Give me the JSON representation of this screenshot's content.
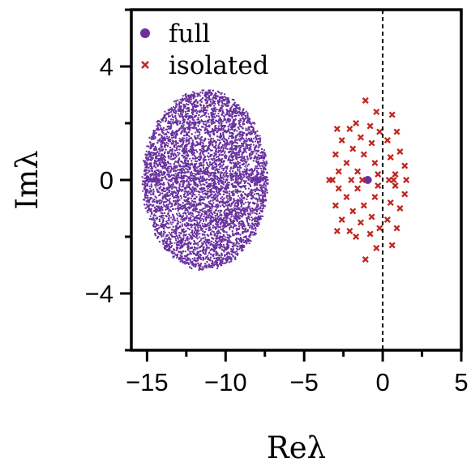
{
  "chart_data": {
    "type": "scatter",
    "title": "",
    "xlabel": "Reλ",
    "ylabel": "Imλ",
    "xlim": [
      -16,
      5
    ],
    "ylim": [
      -6,
      6
    ],
    "xticks": [
      -15,
      -10,
      -5,
      0,
      5
    ],
    "xtick_labels": [
      "−15",
      "−10",
      "−5",
      "0",
      "5"
    ],
    "yticks": [
      -4,
      0,
      4
    ],
    "ytick_labels": [
      "−4",
      "0",
      "4"
    ],
    "grid": false,
    "legend_position": "top-left",
    "reference_line": {
      "x": 0,
      "style": "dashed",
      "color": "#000000"
    },
    "series": [
      {
        "name": "full",
        "marker": "dot",
        "color": "#6a329f",
        "distribution": {
          "shape": "ellipse",
          "center": [
            -11.3,
            0
          ],
          "semi_axis_x": 3.9,
          "semi_axis_y": 3.1,
          "approx_points": 12000
        },
        "extra_points": [
          [
            -14.8,
            0
          ],
          [
            -14.6,
            0
          ],
          [
            -8.2,
            0
          ],
          [
            -8.0,
            0
          ],
          [
            -0.95,
            0
          ]
        ]
      },
      {
        "name": "isolated",
        "marker": "x",
        "color": "#c0271f",
        "points": [
          [
            -1.1,
            2.8
          ],
          [
            -0.4,
            2.4
          ],
          [
            0.6,
            2.3
          ],
          [
            -1.7,
            2.0
          ],
          [
            -0.8,
            1.9
          ],
          [
            -2.9,
            1.8
          ],
          [
            -2.1,
            1.8
          ],
          [
            -0.2,
            1.7
          ],
          [
            -1.4,
            1.5
          ],
          [
            0.9,
            1.7
          ],
          [
            -2.6,
            1.4
          ],
          [
            -0.7,
            1.3
          ],
          [
            0.3,
            1.4
          ],
          [
            -1.9,
            1.1
          ],
          [
            1.1,
            1.0
          ],
          [
            -3.0,
            0.9
          ],
          [
            -1.2,
            0.9
          ],
          [
            0.5,
            0.8
          ],
          [
            -2.3,
            0.6
          ],
          [
            -0.5,
            0.6
          ],
          [
            1.4,
            0.5
          ],
          [
            -2.8,
            0.3
          ],
          [
            -1.6,
            0.3
          ],
          [
            -0.3,
            0.2
          ],
          [
            0.8,
            0.2
          ],
          [
            -3.4,
            0.0
          ],
          [
            -3.2,
            0.0
          ],
          [
            -2.0,
            0.0
          ],
          [
            -1.3,
            0.0
          ],
          [
            0.4,
            0.0
          ],
          [
            0.7,
            0.0
          ],
          [
            1.5,
            0.0
          ],
          [
            -2.8,
            -0.3
          ],
          [
            -1.6,
            -0.3
          ],
          [
            -0.3,
            -0.2
          ],
          [
            0.8,
            -0.2
          ],
          [
            -2.3,
            -0.6
          ],
          [
            -0.5,
            -0.6
          ],
          [
            1.4,
            -0.5
          ],
          [
            -3.0,
            -0.9
          ],
          [
            -1.2,
            -0.9
          ],
          [
            0.5,
            -0.8
          ],
          [
            -1.9,
            -1.1
          ],
          [
            1.1,
            -1.0
          ],
          [
            -2.6,
            -1.4
          ],
          [
            -0.7,
            -1.3
          ],
          [
            0.3,
            -1.4
          ],
          [
            -1.4,
            -1.5
          ],
          [
            0.9,
            -1.7
          ],
          [
            -2.9,
            -1.8
          ],
          [
            -2.1,
            -1.8
          ],
          [
            -0.2,
            -1.7
          ],
          [
            -1.7,
            -2.0
          ],
          [
            -0.8,
            -1.9
          ],
          [
            -0.4,
            -2.4
          ],
          [
            0.6,
            -2.3
          ],
          [
            -1.1,
            -2.8
          ]
        ]
      }
    ]
  }
}
